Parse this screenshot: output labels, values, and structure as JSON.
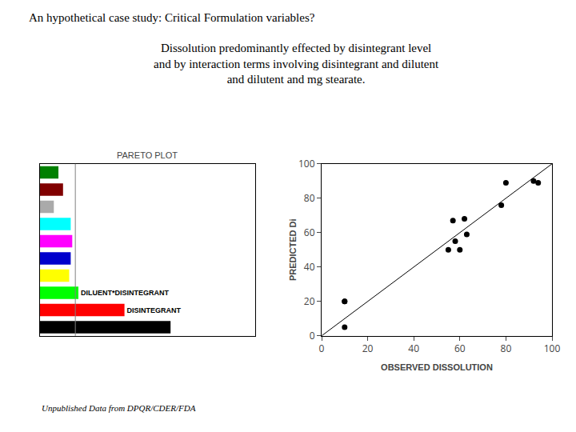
{
  "title": "An hypothetical case study: Critical Formulation variables?",
  "subtitle": [
    "Dissolution predominantly effected by disintegrant level",
    "and by interaction terms involving disintegrant and dilutent",
    "and dilutent and mg stearate."
  ],
  "footer": "Unpublished Data from DPQR/CDER/FDA",
  "background_color": "#ffffff",
  "chart_data": [
    {
      "type": "bar",
      "orientation": "horizontal",
      "title": "PARETO PLOT",
      "values": [
        8.5,
        5.5,
        2.5,
        1.9,
        2.0,
        2.1,
        2.0,
        0.9,
        1.5,
        1.2
      ],
      "colors": [
        "#000000",
        "#ff0000",
        "#00ff00",
        "#ffff00",
        "#0000cc",
        "#ff00ff",
        "#00ffff",
        "#aaaaaa",
        "#800000",
        "#008000"
      ],
      "labels": [
        null,
        "DISINTEGRANT",
        "DILUENT*DISINTEGRANT",
        null,
        null,
        null,
        null,
        null,
        null,
        null
      ],
      "vline": 2.3,
      "xlim": [
        0,
        14
      ],
      "tick_labels": false,
      "grid": false
    },
    {
      "type": "scatter",
      "color": "#000000",
      "x": [
        10,
        10,
        10,
        55,
        57,
        58,
        60,
        62,
        63,
        78,
        80,
        92,
        94
      ],
      "y": [
        20,
        20,
        5,
        50,
        67,
        55,
        50,
        68,
        59,
        76,
        89,
        90,
        89
      ],
      "diagonal": [
        0,
        100
      ],
      "xlabel": "OBSERVED DISSOLUTION",
      "ylabel": "PREDICTED Di",
      "xlim": [
        0,
        100
      ],
      "ylim": [
        0,
        100
      ],
      "xticks": [
        0,
        20,
        40,
        60,
        80,
        100
      ],
      "yticks": [
        0,
        20,
        40,
        60,
        80,
        100
      ],
      "grid": false
    }
  ]
}
